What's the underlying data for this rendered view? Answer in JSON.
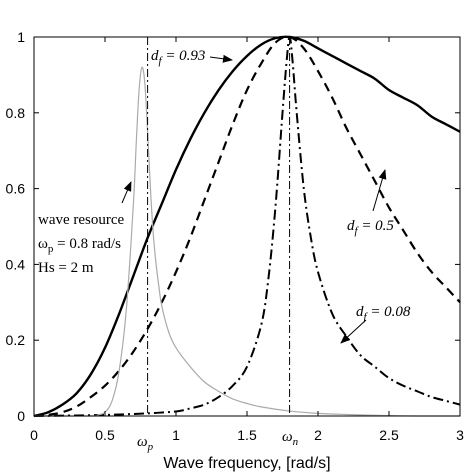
{
  "chart_data": {
    "type": "line",
    "xlabel": "Wave frequency, [rad/s]",
    "ylabel": "",
    "title": "",
    "xlim": [
      0,
      3
    ],
    "ylim": [
      0,
      1
    ],
    "xticks": [
      "0",
      "0.5",
      "1",
      "1.5",
      "2",
      "2.5",
      "3"
    ],
    "yticks": [
      "0",
      "0.2",
      "0.4",
      "0.6",
      "0.8",
      "1"
    ],
    "extra_xtick_labels": [
      {
        "main": "ω",
        "sub": "p",
        "x": 0.8
      },
      {
        "main": "ω",
        "sub": "n",
        "x": 1.8
      }
    ],
    "grid": false,
    "series": [
      {
        "name": "",
        "style": "solid-thick",
        "color": "#000000",
        "x": [
          0,
          0.1,
          0.2,
          0.3,
          0.4,
          0.5,
          0.6,
          0.7,
          0.8,
          0.9,
          1.0,
          1.1,
          1.2,
          1.3,
          1.4,
          1.5,
          1.6,
          1.7,
          1.8,
          1.9,
          2.0,
          2.1,
          2.2,
          2.3,
          2.4,
          2.5,
          2.6,
          2.7,
          2.8,
          2.9,
          3.0
        ],
        "y": [
          0,
          0.01,
          0.03,
          0.06,
          0.11,
          0.18,
          0.27,
          0.37,
          0.47,
          0.56,
          0.65,
          0.73,
          0.8,
          0.86,
          0.91,
          0.95,
          0.98,
          0.997,
          1.0,
          0.99,
          0.97,
          0.95,
          0.93,
          0.91,
          0.89,
          0.86,
          0.84,
          0.82,
          0.79,
          0.77,
          0.75
        ]
      },
      {
        "name": "",
        "style": "dashed",
        "color": "#000000",
        "x": [
          0,
          0.1,
          0.2,
          0.3,
          0.4,
          0.5,
          0.6,
          0.7,
          0.8,
          0.9,
          1.0,
          1.1,
          1.2,
          1.3,
          1.4,
          1.5,
          1.6,
          1.7,
          1.8,
          1.9,
          2.0,
          2.1,
          2.2,
          2.3,
          2.4,
          2.5,
          2.6,
          2.7,
          2.8,
          2.9,
          3.0
        ],
        "y": [
          0,
          0.003,
          0.01,
          0.025,
          0.05,
          0.08,
          0.12,
          0.17,
          0.23,
          0.3,
          0.38,
          0.47,
          0.57,
          0.67,
          0.77,
          0.86,
          0.93,
          0.985,
          1.0,
          0.97,
          0.91,
          0.84,
          0.76,
          0.69,
          0.62,
          0.55,
          0.49,
          0.43,
          0.38,
          0.34,
          0.3
        ]
      },
      {
        "name": "",
        "style": "dash-dot",
        "color": "#000000",
        "x": [
          0,
          0.2,
          0.4,
          0.6,
          0.8,
          1.0,
          1.1,
          1.2,
          1.3,
          1.4,
          1.5,
          1.6,
          1.65,
          1.7,
          1.75,
          1.78,
          1.8,
          1.82,
          1.85,
          1.9,
          1.95,
          2.0,
          2.1,
          2.2,
          2.3,
          2.4,
          2.5,
          2.6,
          2.7,
          2.8,
          2.9,
          3.0
        ],
        "y": [
          0,
          0.001,
          0.002,
          0.004,
          0.007,
          0.012,
          0.02,
          0.03,
          0.05,
          0.08,
          0.13,
          0.24,
          0.36,
          0.55,
          0.8,
          0.94,
          1.0,
          0.94,
          0.8,
          0.6,
          0.47,
          0.38,
          0.27,
          0.21,
          0.16,
          0.13,
          0.1,
          0.08,
          0.065,
          0.05,
          0.04,
          0.03
        ]
      },
      {
        "name": "",
        "style": "solid-thin",
        "color": "#aaaaaa",
        "x": [
          0,
          0.4,
          0.45,
          0.5,
          0.55,
          0.6,
          0.65,
          0.7,
          0.72,
          0.74,
          0.76,
          0.78,
          0.8,
          0.82,
          0.84,
          0.86,
          0.88,
          0.9,
          0.95,
          1.0,
          1.1,
          1.2,
          1.3,
          1.4,
          1.5,
          1.6,
          1.8,
          2.0,
          2.2,
          2.5,
          2.7,
          3.0
        ],
        "y": [
          0,
          0.0,
          0.003,
          0.01,
          0.04,
          0.12,
          0.28,
          0.56,
          0.72,
          0.86,
          0.92,
          0.88,
          0.75,
          0.6,
          0.48,
          0.4,
          0.34,
          0.29,
          0.22,
          0.18,
          0.13,
          0.09,
          0.065,
          0.045,
          0.033,
          0.024,
          0.013,
          0.007,
          0.004,
          0.001,
          0.0,
          0.0
        ]
      }
    ],
    "vlines": [
      {
        "x": 0.8,
        "style": "dash-dot"
      },
      {
        "x": 1.8,
        "style": "dash-dot"
      }
    ],
    "annotations": [
      {
        "lines": [
          "d_f = 0.93"
        ],
        "arrow": true
      },
      {
        "lines": [
          "d_f = 0.5"
        ],
        "arrow": true
      },
      {
        "lines": [
          "d_f = 0.08"
        ],
        "arrow": true
      },
      {
        "lines": [
          "wave resource",
          "ω_p = 0.8 rad/s",
          "Hs = 2 m"
        ],
        "arrow": true
      }
    ]
  }
}
